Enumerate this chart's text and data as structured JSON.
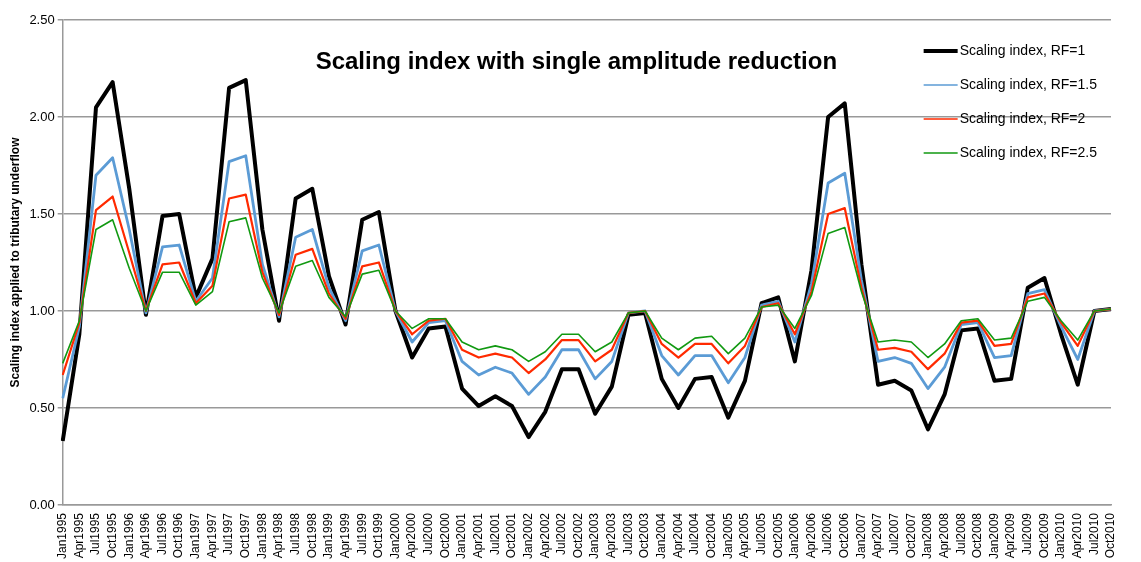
{
  "chart_data": {
    "type": "line",
    "title": "Scaling index with single amplitude reduction",
    "ylabel": "Scaling index applied to tributary underflow",
    "categories": [
      "Jan1995",
      "Apr1995",
      "Jul1995",
      "Oct1995",
      "Jan1996",
      "Apr1996",
      "Jul1996",
      "Oct1996",
      "Jan1997",
      "Apr1997",
      "Jul1997",
      "Oct1997",
      "Jan1998",
      "Apr1998",
      "Jul1998",
      "Oct1998",
      "Jan1999",
      "Apr1999",
      "Jul1999",
      "Oct1999",
      "Jan2000",
      "Apr2000",
      "Jul2000",
      "Oct2000",
      "Jan2001",
      "Apr2001",
      "Jul2001",
      "Oct2001",
      "Jan2002",
      "Apr2002",
      "Jul2002",
      "Oct2002",
      "Jan2003",
      "Apr2003",
      "Jul2003",
      "Oct2003",
      "Jan2004",
      "Apr2004",
      "Jul2004",
      "Oct2004",
      "Jan2005",
      "Apr2005",
      "Jul2005",
      "Oct2005",
      "Jan2006",
      "Apr2006",
      "Jul2006",
      "Oct2006",
      "Jan2007",
      "Apr2007",
      "Jul2007",
      "Oct2007",
      "Jan2008",
      "Apr2008",
      "Jul2008",
      "Oct2008",
      "Jan2009",
      "Apr2009",
      "Jul2009",
      "Oct2009",
      "Jan2010",
      "Apr2010",
      "Jul2010",
      "Oct2010"
    ],
    "series": [
      {
        "name": "Scaling index, RF=1",
        "color": "#000000",
        "values": [
          0.33,
          0.88,
          2.05,
          2.18,
          1.63,
          0.98,
          1.49,
          1.5,
          1.07,
          1.27,
          2.15,
          2.19,
          1.42,
          0.95,
          1.58,
          1.63,
          1.18,
          0.93,
          1.47,
          1.51,
          1.0,
          0.76,
          0.91,
          0.92,
          0.6,
          0.51,
          0.56,
          0.51,
          0.35,
          0.48,
          0.7,
          0.7,
          0.47,
          0.61,
          0.98,
          0.99,
          0.65,
          0.5,
          0.65,
          0.66,
          0.45,
          0.64,
          1.04,
          1.07,
          0.74,
          1.21,
          2.0,
          2.07,
          1.24,
          0.62,
          0.64,
          0.59,
          0.39,
          0.57,
          0.9,
          0.91,
          0.64,
          0.65,
          1.12,
          1.17,
          0.88,
          0.62,
          1.0,
          1.01
        ]
      },
      {
        "name": "Scaling index, RF=1.5",
        "color": "#5b9bd5",
        "values": [
          0.55,
          0.92,
          1.7,
          1.79,
          1.42,
          0.99,
          1.33,
          1.34,
          1.05,
          1.17,
          1.77,
          1.8,
          1.24,
          0.97,
          1.38,
          1.42,
          1.12,
          0.95,
          1.31,
          1.34,
          1.0,
          0.84,
          0.94,
          0.95,
          0.74,
          0.67,
          0.71,
          0.68,
          0.57,
          0.66,
          0.8,
          0.8,
          0.65,
          0.74,
          0.99,
          1.0,
          0.77,
          0.67,
          0.77,
          0.77,
          0.63,
          0.76,
          1.03,
          1.05,
          0.84,
          1.14,
          1.66,
          1.71,
          1.16,
          0.74,
          0.76,
          0.73,
          0.6,
          0.71,
          0.93,
          0.94,
          0.76,
          0.77,
          1.09,
          1.11,
          0.92,
          0.75,
          1.0,
          1.01
        ]
      },
      {
        "name": "Scaling index, RF=2",
        "color": "#ff2a00",
        "values": [
          0.67,
          0.94,
          1.52,
          1.59,
          1.3,
          1.0,
          1.24,
          1.25,
          1.04,
          1.13,
          1.58,
          1.6,
          1.2,
          0.98,
          1.29,
          1.32,
          1.09,
          0.96,
          1.23,
          1.25,
          1.0,
          0.88,
          0.95,
          0.96,
          0.8,
          0.76,
          0.78,
          0.76,
          0.68,
          0.75,
          0.85,
          0.85,
          0.74,
          0.8,
          0.99,
          1.0,
          0.83,
          0.76,
          0.83,
          0.83,
          0.73,
          0.82,
          1.02,
          1.04,
          0.88,
          1.1,
          1.5,
          1.53,
          1.12,
          0.8,
          0.81,
          0.79,
          0.7,
          0.78,
          0.94,
          0.95,
          0.82,
          0.83,
          1.07,
          1.09,
          0.94,
          0.82,
          1.0,
          1.01
        ]
      },
      {
        "name": "Scaling index, RF=2.5",
        "color": "#119911",
        "values": [
          0.73,
          0.95,
          1.42,
          1.47,
          1.22,
          1.0,
          1.2,
          1.2,
          1.03,
          1.1,
          1.46,
          1.48,
          1.17,
          0.99,
          1.23,
          1.26,
          1.07,
          0.97,
          1.19,
          1.21,
          1.0,
          0.91,
          0.96,
          0.96,
          0.84,
          0.8,
          0.82,
          0.8,
          0.74,
          0.79,
          0.88,
          0.88,
          0.79,
          0.84,
          0.99,
          1.0,
          0.86,
          0.8,
          0.86,
          0.87,
          0.78,
          0.86,
          1.02,
          1.03,
          0.91,
          1.08,
          1.4,
          1.43,
          1.1,
          0.84,
          0.85,
          0.84,
          0.76,
          0.83,
          0.95,
          0.96,
          0.85,
          0.86,
          1.05,
          1.07,
          0.95,
          0.85,
          1.0,
          1.01
        ]
      }
    ],
    "ylim": [
      0,
      2.5
    ],
    "yticks": [
      {
        "value": 0,
        "label": "0.00"
      },
      {
        "value": 0.5,
        "label": "0.50"
      },
      {
        "value": 1,
        "label": "1.00"
      },
      {
        "value": 1.5,
        "label": "1.50"
      },
      {
        "value": 2,
        "label": "2.00"
      },
      {
        "value": 2.5,
        "label": "2.50"
      }
    ],
    "grid": "y",
    "legend": "top right",
    "marker": "none",
    "line_style": "solid"
  }
}
